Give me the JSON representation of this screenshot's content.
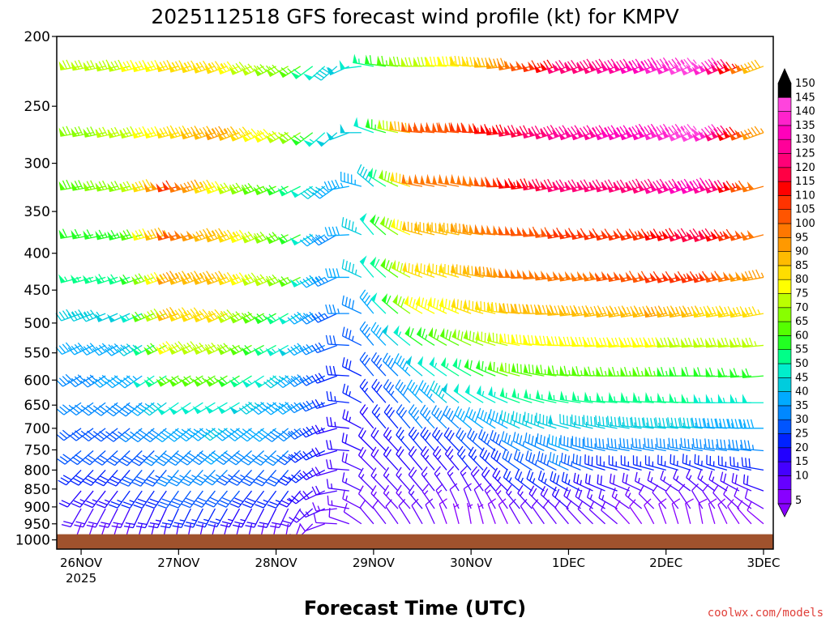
{
  "chart_data": {
    "type": "wind-barb-time-height",
    "title": "2025112518 GFS forecast wind profile (kt) for KMPV",
    "xlabel": "Forecast Time (UTC)",
    "ylabel": "",
    "credit": "coolwx.com/models",
    "y_scale": "log-pressure",
    "ylim": [
      1030,
      200
    ],
    "y_ticks": [
      200,
      250,
      300,
      350,
      400,
      450,
      500,
      550,
      600,
      650,
      700,
      750,
      800,
      850,
      900,
      950,
      1000
    ],
    "xlim": [
      -0.25,
      7.1
    ],
    "x_ticks": [
      {
        "day": 0,
        "label": "26NOV",
        "sub": "2025"
      },
      {
        "day": 1,
        "label": "27NOV",
        "sub": ""
      },
      {
        "day": 2,
        "label": "28NOV",
        "sub": ""
      },
      {
        "day": 3,
        "label": "29NOV",
        "sub": ""
      },
      {
        "day": 4,
        "label": "30NOV",
        "sub": ""
      },
      {
        "day": 5,
        "label": "1DEC",
        "sub": ""
      },
      {
        "day": 6,
        "label": "2DEC",
        "sub": ""
      },
      {
        "day": 7,
        "label": "3DEC",
        "sub": ""
      }
    ],
    "surface_pressure_hpa": 982,
    "colorbar": {
      "units": "kt",
      "levels": [
        5,
        10,
        15,
        20,
        25,
        30,
        35,
        40,
        45,
        50,
        55,
        60,
        65,
        70,
        75,
        80,
        85,
        90,
        95,
        100,
        105,
        110,
        115,
        120,
        125,
        130,
        135,
        140,
        145,
        150
      ],
      "colors": [
        "#8800ff",
        "#6600ff",
        "#4400ff",
        "#2200ff",
        "#0022ff",
        "#0055ff",
        "#0088ff",
        "#00aaff",
        "#00ccdd",
        "#00eecc",
        "#00ff88",
        "#22ff22",
        "#55ff00",
        "#88ff00",
        "#bbff00",
        "#ffff00",
        "#ffdd00",
        "#ffbb00",
        "#ff9900",
        "#ff7700",
        "#ff5500",
        "#ff3300",
        "#ff0000",
        "#ff0044",
        "#ff0077",
        "#ff0099",
        "#ff00bb",
        "#ff22cc",
        "#ff44dd",
        "#000000"
      ]
    },
    "levels_hpa": [
      220,
      272,
      323,
      377,
      432,
      485,
      537,
      592,
      645,
      700,
      752,
      800,
      855,
      905,
      950
    ],
    "times_days": [
      0,
      0.125,
      0.25,
      0.375,
      0.5,
      0.625,
      0.75,
      0.875,
      1,
      1.125,
      1.25,
      1.375,
      1.5,
      1.625,
      1.75,
      1.875,
      2,
      2.125,
      2.25,
      2.375,
      2.5,
      2.625,
      2.75,
      2.875,
      3,
      3.125,
      3.25,
      3.375,
      3.5,
      3.625,
      3.75,
      3.875,
      4,
      4.125,
      4.25,
      4.375,
      4.5,
      4.625,
      4.75,
      4.875,
      5,
      5.125,
      5.25,
      5.375,
      5.5,
      5.625,
      5.75,
      5.875,
      6,
      6.125,
      6.25,
      6.375,
      6.5,
      6.625,
      6.75,
      6.875,
      7
    ],
    "wind_keyframes": [
      {
        "day": 0.0,
        "speed_kt": [
          75,
          70,
          68,
          60,
          55,
          45,
          40,
          38,
          35,
          32,
          30,
          28,
          22,
          18,
          12
        ],
        "dir_deg": [
          260,
          260,
          260,
          260,
          255,
          250,
          245,
          240,
          235,
          235,
          230,
          225,
          220,
          210,
          200
        ]
      },
      {
        "day": 0.6,
        "speed_kt": [
          80,
          78,
          75,
          65,
          60,
          50,
          45,
          42,
          38,
          35,
          32,
          30,
          26,
          20,
          15
        ],
        "dir_deg": [
          255,
          255,
          255,
          255,
          250,
          245,
          240,
          235,
          230,
          230,
          225,
          220,
          215,
          205,
          195
        ]
      },
      {
        "day": 1.0,
        "speed_kt": [
          85,
          88,
          110,
          105,
          95,
          90,
          80,
          65,
          50,
          42,
          38,
          35,
          30,
          25,
          18
        ],
        "dir_deg": [
          255,
          255,
          255,
          255,
          250,
          250,
          245,
          240,
          235,
          230,
          225,
          220,
          215,
          205,
          190
        ]
      },
      {
        "day": 1.5,
        "speed_kt": [
          85,
          95,
          80,
          90,
          90,
          85,
          75,
          65,
          52,
          45,
          40,
          35,
          32,
          25,
          18
        ],
        "dir_deg": [
          250,
          250,
          250,
          250,
          250,
          245,
          245,
          240,
          240,
          235,
          230,
          225,
          220,
          210,
          195
        ]
      },
      {
        "day": 2.2,
        "speed_kt": [
          70,
          75,
          60,
          65,
          70,
          55,
          50,
          45,
          42,
          38,
          35,
          30,
          25,
          18,
          12
        ],
        "dir_deg": [
          240,
          240,
          245,
          245,
          245,
          240,
          240,
          235,
          235,
          230,
          225,
          220,
          215,
          205,
          190
        ]
      },
      {
        "day": 2.6,
        "speed_kt": [
          45,
          48,
          42,
          35,
          35,
          32,
          30,
          28,
          26,
          24,
          22,
          20,
          18,
          15,
          10
        ],
        "dir_deg": [
          225,
          225,
          230,
          235,
          240,
          240,
          245,
          245,
          250,
          250,
          250,
          250,
          255,
          260,
          270
        ]
      },
      {
        "day": 3.0,
        "speed_kt": [
          55,
          50,
          45,
          50,
          50,
          42,
          36,
          30,
          25,
          22,
          20,
          18,
          15,
          12,
          10
        ],
        "dir_deg": [
          280,
          290,
          310,
          320,
          320,
          320,
          320,
          320,
          320,
          320,
          315,
          315,
          315,
          315,
          320
        ]
      },
      {
        "day": 3.5,
        "speed_kt": [
          75,
          105,
          100,
          90,
          85,
          80,
          60,
          48,
          42,
          35,
          28,
          22,
          18,
          15,
          12
        ],
        "dir_deg": [
          270,
          275,
          280,
          285,
          290,
          300,
          305,
          310,
          315,
          320,
          320,
          320,
          320,
          320,
          330
        ]
      },
      {
        "day": 4.0,
        "speed_kt": [
          85,
          110,
          100,
          95,
          90,
          85,
          70,
          58,
          50,
          40,
          30,
          25,
          15,
          10,
          5
        ],
        "dir_deg": [
          275,
          275,
          280,
          280,
          285,
          290,
          295,
          300,
          305,
          310,
          315,
          320,
          330,
          340,
          350
        ]
      },
      {
        "day": 4.5,
        "speed_kt": [
          100,
          120,
          115,
          105,
          100,
          90,
          80,
          70,
          55,
          45,
          35,
          30,
          25,
          15,
          10
        ],
        "dir_deg": [
          260,
          260,
          265,
          270,
          270,
          275,
          280,
          285,
          290,
          295,
          300,
          305,
          310,
          320,
          330
        ]
      },
      {
        "day": 5.0,
        "speed_kt": [
          125,
          130,
          125,
          110,
          100,
          90,
          80,
          65,
          55,
          48,
          40,
          35,
          28,
          20,
          12
        ],
        "dir_deg": [
          250,
          250,
          255,
          260,
          260,
          265,
          270,
          275,
          280,
          285,
          290,
          295,
          300,
          310,
          320
        ]
      },
      {
        "day": 5.5,
        "speed_kt": [
          130,
          135,
          125,
          110,
          105,
          90,
          80,
          65,
          55,
          45,
          35,
          25,
          20,
          15,
          10
        ],
        "dir_deg": [
          250,
          250,
          255,
          255,
          260,
          260,
          265,
          270,
          275,
          280,
          280,
          285,
          290,
          300,
          310
        ]
      },
      {
        "day": 6.0,
        "speed_kt": [
          140,
          140,
          130,
          115,
          110,
          95,
          80,
          65,
          55,
          45,
          35,
          25,
          15,
          10,
          8
        ],
        "dir_deg": [
          250,
          250,
          250,
          255,
          255,
          260,
          265,
          270,
          275,
          275,
          280,
          285,
          300,
          320,
          340
        ]
      },
      {
        "day": 6.4,
        "speed_kt": [
          150,
          150,
          140,
          125,
          115,
          90,
          75,
          60,
          55,
          45,
          35,
          25,
          15,
          10,
          8
        ],
        "dir_deg": [
          245,
          245,
          250,
          250,
          255,
          260,
          265,
          270,
          270,
          275,
          280,
          290,
          310,
          330,
          350
        ]
      },
      {
        "day": 7.0,
        "speed_kt": [
          90,
          95,
          100,
          100,
          95,
          85,
          75,
          62,
          52,
          42,
          35,
          28,
          20,
          12,
          8
        ],
        "dir_deg": [
          250,
          250,
          255,
          255,
          260,
          260,
          265,
          265,
          270,
          270,
          275,
          280,
          290,
          300,
          310
        ]
      }
    ]
  }
}
